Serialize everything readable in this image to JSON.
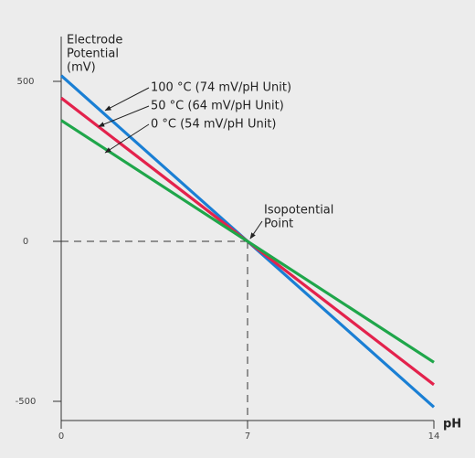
{
  "chart_data": {
    "type": "line",
    "y_label": [
      "Electrode",
      "Potential",
      "(mV)"
    ],
    "x_label": "pH",
    "x": [
      0,
      14
    ],
    "xlim": [
      0,
      14
    ],
    "xticks": [
      0,
      7,
      14
    ],
    "ylim": [
      -560,
      560
    ],
    "yticks": [
      -500,
      0,
      500
    ],
    "series": [
      {
        "name": "100 °C (74 mV/pH Unit)",
        "color": "#1a7fd4",
        "values": [
          518,
          -518
        ]
      },
      {
        "name": "50 °C (64 mV/pH Unit)",
        "color": "#e3224c",
        "values": [
          448,
          -448
        ]
      },
      {
        "name": "0 °C (54 mV/pH Unit)",
        "color": "#1fa64a",
        "values": [
          378,
          -378
        ]
      }
    ],
    "isopotential": {
      "x": 7,
      "y": 0,
      "label": [
        "Isopotential",
        "Point"
      ]
    }
  }
}
